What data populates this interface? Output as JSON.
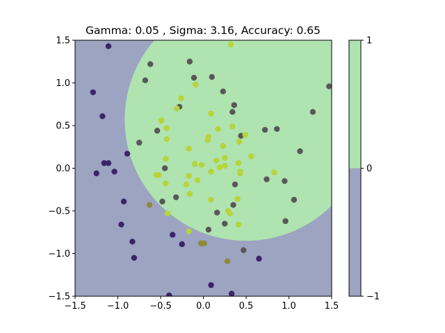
{
  "chart_data": {
    "type": "scatter",
    "title": "Gamma: 0.05 , Sigma: 3.16, Accuracy: 0.65",
    "xlabel": "",
    "ylabel": "",
    "xlim": [
      -1.5,
      1.5
    ],
    "ylim": [
      -1.5,
      1.5
    ],
    "x_ticks": [
      -1.5,
      -1.0,
      -0.5,
      0.0,
      0.5,
      1.0,
      1.5
    ],
    "y_ticks": [
      -1.5,
      -1.0,
      -0.5,
      0.0,
      0.5,
      1.0,
      1.5
    ],
    "x_tick_labels": [
      "−1.5",
      "−1.0",
      "−0.5",
      "0.0",
      "0.5",
      "1.0",
      "1.5"
    ],
    "y_tick_labels": [
      "−1.5",
      "−1.0",
      "−0.5",
      "0.0",
      "0.5",
      "1.0",
      "1.5"
    ],
    "grid": false,
    "decision_region": {
      "shape": "circle",
      "center": [
        0.5,
        0.57
      ],
      "radius": 1.42,
      "inside_class": 1,
      "outside_class": -1,
      "inside_color": "#afe3b0",
      "outside_color": "#9ca4c2"
    },
    "colorbar": {
      "ticks": [
        -1,
        0,
        1
      ],
      "tick_labels": [
        "−1",
        "0",
        "1"
      ],
      "colors": [
        {
          "from": -1,
          "to": 0,
          "color": "#9ca4c2"
        },
        {
          "from": 0,
          "to": 1,
          "color": "#afe3b0"
        }
      ]
    },
    "point_colors": {
      "purple": "#3b2468",
      "gray": "#585858",
      "yellow": "#b7d43a",
      "olive": "#8f8a3a"
    },
    "points": [
      {
        "x": -1.11,
        "y": 1.43,
        "c": "purple"
      },
      {
        "x": -1.29,
        "y": 0.89,
        "c": "purple"
      },
      {
        "x": -1.18,
        "y": 0.61,
        "c": "purple"
      },
      {
        "x": -1.16,
        "y": 0.06,
        "c": "purple"
      },
      {
        "x": -1.11,
        "y": 0.06,
        "c": "purple"
      },
      {
        "x": -1.25,
        "y": -0.06,
        "c": "purple"
      },
      {
        "x": -1.04,
        "y": -0.04,
        "c": "purple"
      },
      {
        "x": -0.89,
        "y": 0.17,
        "c": "purple"
      },
      {
        "x": -0.93,
        "y": -0.39,
        "c": "purple"
      },
      {
        "x": -0.96,
        "y": -0.66,
        "c": "purple"
      },
      {
        "x": -0.83,
        "y": -0.86,
        "c": "purple"
      },
      {
        "x": -0.81,
        "y": -1.05,
        "c": "purple"
      },
      {
        "x": -0.36,
        "y": -0.78,
        "c": "purple"
      },
      {
        "x": -0.25,
        "y": -0.89,
        "c": "purple"
      },
      {
        "x": -0.4,
        "y": -1.49,
        "c": "purple"
      },
      {
        "x": 0.09,
        "y": -1.37,
        "c": "purple"
      },
      {
        "x": 0.33,
        "y": -1.47,
        "c": "purple"
      },
      {
        "x": 0.65,
        "y": -1.06,
        "c": "purple"
      },
      {
        "x": -0.62,
        "y": 1.22,
        "c": "gray"
      },
      {
        "x": -0.68,
        "y": 1.03,
        "c": "gray"
      },
      {
        "x": -0.16,
        "y": 1.25,
        "c": "gray"
      },
      {
        "x": -0.11,
        "y": 1.06,
        "c": "gray"
      },
      {
        "x": 0.1,
        "y": 1.07,
        "c": "gray"
      },
      {
        "x": 0.23,
        "y": 0.9,
        "c": "gray"
      },
      {
        "x": -0.28,
        "y": 0.72,
        "c": "gray"
      },
      {
        "x": 0.36,
        "y": 0.74,
        "c": "gray"
      },
      {
        "x": 0.34,
        "y": 0.66,
        "c": "gray"
      },
      {
        "x": -0.54,
        "y": 0.44,
        "c": "gray"
      },
      {
        "x": -0.75,
        "y": 0.3,
        "c": "gray"
      },
      {
        "x": 0.44,
        "y": 0.38,
        "c": "gray"
      },
      {
        "x": 0.72,
        "y": 0.45,
        "c": "gray"
      },
      {
        "x": 0.86,
        "y": 0.46,
        "c": "gray"
      },
      {
        "x": 1.28,
        "y": 0.66,
        "c": "gray"
      },
      {
        "x": 1.47,
        "y": 0.96,
        "c": "gray"
      },
      {
        "x": 1.13,
        "y": 0.2,
        "c": "gray"
      },
      {
        "x": -0.45,
        "y": 0.0,
        "c": "gray"
      },
      {
        "x": 0.74,
        "y": -0.13,
        "c": "gray"
      },
      {
        "x": 0.95,
        "y": -0.15,
        "c": "gray"
      },
      {
        "x": 0.37,
        "y": -0.19,
        "c": "gray"
      },
      {
        "x": -0.32,
        "y": -0.34,
        "c": "gray"
      },
      {
        "x": -0.48,
        "y": -0.39,
        "c": "gray"
      },
      {
        "x": 1.06,
        "y": -0.37,
        "c": "gray"
      },
      {
        "x": 0.35,
        "y": -0.43,
        "c": "gray"
      },
      {
        "x": 0.16,
        "y": -0.52,
        "c": "gray"
      },
      {
        "x": 0.25,
        "y": -0.65,
        "c": "gray"
      },
      {
        "x": 0.06,
        "y": -0.72,
        "c": "gray"
      },
      {
        "x": 0.96,
        "y": -0.62,
        "c": "gray"
      },
      {
        "x": 0.47,
        "y": -0.96,
        "c": "gray"
      },
      {
        "x": 0.32,
        "y": 1.45,
        "c": "yellow"
      },
      {
        "x": -0.09,
        "y": 0.98,
        "c": "yellow"
      },
      {
        "x": -0.26,
        "y": 0.82,
        "c": "yellow"
      },
      {
        "x": -0.31,
        "y": 0.7,
        "c": "yellow"
      },
      {
        "x": 0.09,
        "y": 0.64,
        "c": "yellow"
      },
      {
        "x": -0.49,
        "y": 0.56,
        "c": "yellow"
      },
      {
        "x": -0.43,
        "y": 0.47,
        "c": "yellow"
      },
      {
        "x": 0.17,
        "y": 0.46,
        "c": "yellow"
      },
      {
        "x": 0.34,
        "y": 0.49,
        "c": "yellow"
      },
      {
        "x": -0.43,
        "y": 0.34,
        "c": "yellow"
      },
      {
        "x": 0.05,
        "y": 0.33,
        "c": "yellow"
      },
      {
        "x": 0.06,
        "y": 0.37,
        "c": "yellow"
      },
      {
        "x": 0.42,
        "y": 0.31,
        "c": "yellow"
      },
      {
        "x": 0.49,
        "y": 0.39,
        "c": "yellow"
      },
      {
        "x": -0.17,
        "y": 0.23,
        "c": "yellow"
      },
      {
        "x": 0.23,
        "y": 0.26,
        "c": "yellow"
      },
      {
        "x": -0.44,
        "y": 0.11,
        "c": "yellow"
      },
      {
        "x": 0.56,
        "y": 0.14,
        "c": "yellow"
      },
      {
        "x": -0.1,
        "y": 0.05,
        "c": "yellow"
      },
      {
        "x": -0.02,
        "y": 0.04,
        "c": "yellow"
      },
      {
        "x": 0.15,
        "y": 0.09,
        "c": "yellow"
      },
      {
        "x": 0.25,
        "y": 0.12,
        "c": "yellow"
      },
      {
        "x": 0.19,
        "y": 0.01,
        "c": "yellow"
      },
      {
        "x": 0.25,
        "y": 0.03,
        "c": "yellow"
      },
      {
        "x": 0.41,
        "y": 0.06,
        "c": "yellow"
      },
      {
        "x": 0.43,
        "y": -0.04,
        "c": "yellow"
      },
      {
        "x": 0.43,
        "y": -0.06,
        "c": "yellow"
      },
      {
        "x": 0.83,
        "y": -0.05,
        "c": "yellow"
      },
      {
        "x": 0.09,
        "y": -0.04,
        "c": "yellow"
      },
      {
        "x": -0.55,
        "y": -0.08,
        "c": "yellow"
      },
      {
        "x": -0.52,
        "y": -0.08,
        "c": "yellow"
      },
      {
        "x": -0.17,
        "y": -0.09,
        "c": "yellow"
      },
      {
        "x": -0.07,
        "y": -0.14,
        "c": "yellow"
      },
      {
        "x": -0.44,
        "y": -0.18,
        "c": "yellow"
      },
      {
        "x": -0.2,
        "y": -0.19,
        "c": "yellow"
      },
      {
        "x": -0.16,
        "y": -0.3,
        "c": "yellow"
      },
      {
        "x": 0.09,
        "y": -0.37,
        "c": "yellow"
      },
      {
        "x": 0.4,
        "y": -0.36,
        "c": "yellow"
      },
      {
        "x": -0.42,
        "y": -0.53,
        "c": "yellow"
      },
      {
        "x": 0.29,
        "y": -0.5,
        "c": "yellow"
      },
      {
        "x": 0.31,
        "y": -0.53,
        "c": "yellow"
      },
      {
        "x": 0.41,
        "y": -0.66,
        "c": "yellow"
      },
      {
        "x": -0.17,
        "y": -0.74,
        "c": "yellow"
      },
      {
        "x": -0.63,
        "y": -0.43,
        "c": "olive"
      },
      {
        "x": -0.03,
        "y": -0.88,
        "c": "olive"
      },
      {
        "x": 0.01,
        "y": -0.88,
        "c": "olive"
      },
      {
        "x": 0.28,
        "y": -1.09,
        "c": "olive"
      }
    ]
  }
}
